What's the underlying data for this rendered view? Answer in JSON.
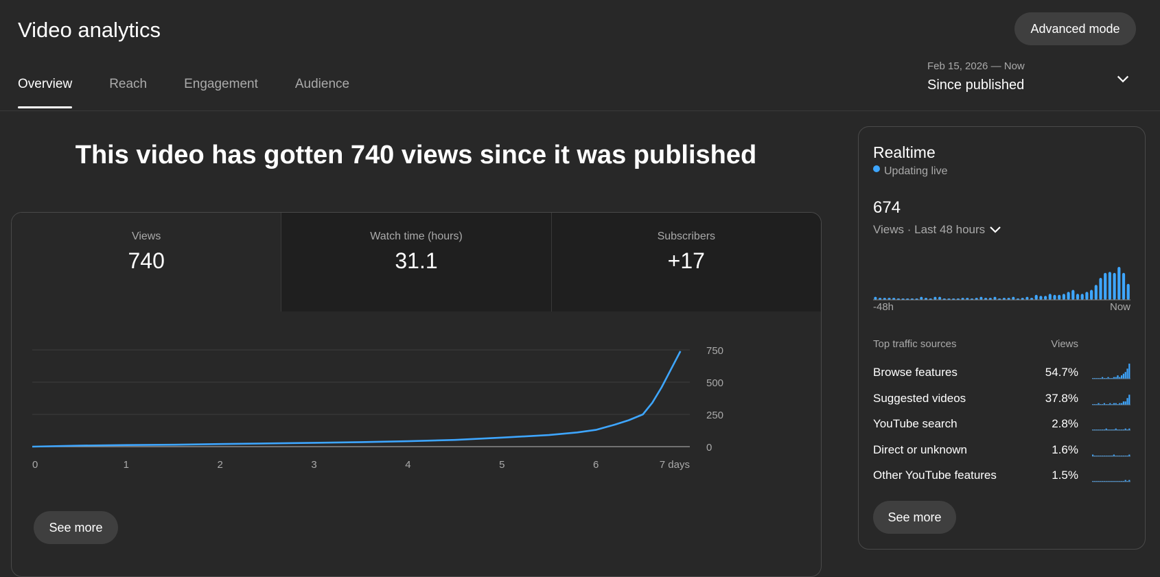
{
  "header": {
    "title": "Video analytics",
    "advanced_mode": "Advanced mode",
    "tabs": [
      "Overview",
      "Reach",
      "Engagement",
      "Audience"
    ],
    "active_tab": "Overview",
    "date_range": {
      "dates": "Feb 15, 2026 — Now",
      "label": "Since published"
    }
  },
  "headline": "This video has gotten 740 views since it was published",
  "metrics": [
    {
      "label": "Views",
      "value": "740"
    },
    {
      "label": "Watch time (hours)",
      "value": "31.1"
    },
    {
      "label": "Subscribers",
      "value": "+17"
    }
  ],
  "see_more": "See more",
  "chart_data": {
    "type": "line",
    "xlabel": "",
    "ylabel": "",
    "x_ticks": [
      "0",
      "1",
      "2",
      "3",
      "4",
      "5",
      "6",
      "7 days"
    ],
    "y_ticks": [
      "750",
      "500",
      "250",
      "0"
    ],
    "ylim": [
      0,
      750
    ],
    "xlim": [
      0,
      7
    ],
    "grid": true,
    "color": "#3ea6ff",
    "series": [
      {
        "x": [
          0,
          0.5,
          1.0,
          1.5,
          2.0,
          2.5,
          3.0,
          3.5,
          4.0,
          4.5,
          5.0,
          5.5,
          5.8,
          6.0,
          6.2,
          6.35,
          6.5,
          6.6,
          6.7,
          6.8,
          6.9
        ],
        "values": [
          0,
          8,
          12,
          15,
          20,
          25,
          30,
          35,
          42,
          52,
          70,
          90,
          110,
          130,
          170,
          205,
          250,
          340,
          460,
          600,
          740
        ]
      }
    ]
  },
  "realtime": {
    "title": "Realtime",
    "status": "Updating live",
    "count": "674",
    "period": "Views · Last 48 hours",
    "axis_start": "-48h",
    "axis_end": "Now",
    "bar_values": [
      3,
      2,
      2,
      2,
      2,
      1,
      1,
      1,
      1,
      1,
      3,
      2,
      1,
      3,
      3,
      1,
      1,
      1,
      1,
      2,
      2,
      1,
      2,
      3,
      2,
      2,
      3,
      1,
      2,
      2,
      3,
      1,
      2,
      3,
      2,
      5,
      4,
      4,
      6,
      5,
      5,
      6,
      8,
      10,
      6,
      6,
      8,
      10,
      15,
      22,
      27,
      28,
      27,
      33,
      27,
      16
    ],
    "traffic_header": "Top traffic sources",
    "traffic_col": "Views",
    "traffic_sources": [
      {
        "name": "Browse features",
        "pct": "54.7%",
        "spark": [
          0,
          0,
          0,
          0,
          0,
          1,
          0,
          0,
          1,
          0,
          0,
          1,
          1,
          2,
          1,
          2,
          3,
          4,
          6,
          9
        ]
      },
      {
        "name": "Suggested videos",
        "pct": "37.8%",
        "spark": [
          0,
          0,
          0,
          1,
          0,
          0,
          1,
          0,
          0,
          1,
          0,
          1,
          1,
          0,
          1,
          1,
          2,
          2,
          4,
          6
        ]
      },
      {
        "name": "YouTube search",
        "pct": "2.8%",
        "spark": [
          0,
          0,
          0,
          0,
          0,
          0,
          0,
          1,
          0,
          0,
          0,
          0,
          1,
          0,
          0,
          0,
          0,
          1,
          0,
          1
        ]
      },
      {
        "name": "Direct or unknown",
        "pct": "1.6%",
        "spark": [
          1,
          0,
          0,
          0,
          0,
          0,
          0,
          0,
          0,
          0,
          0,
          1,
          0,
          0,
          0,
          0,
          0,
          0,
          0,
          1
        ]
      },
      {
        "name": "Other YouTube features",
        "pct": "1.5%",
        "spark": [
          0,
          0,
          0,
          0,
          0,
          0,
          0,
          0,
          0,
          0,
          0,
          0,
          0,
          0,
          0,
          0,
          0,
          1,
          0,
          1
        ]
      }
    ]
  }
}
